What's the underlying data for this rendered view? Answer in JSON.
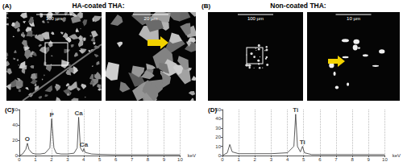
{
  "figure": {
    "panels": [
      {
        "label": "(A)",
        "title": "HA-coated THA:",
        "images": [
          {
            "scale_bar": "100 µm"
          },
          {
            "scale_bar": "20 µm"
          }
        ]
      },
      {
        "label": "(B)",
        "title": "Non-coated THA:",
        "images": [
          {
            "scale_bar": "100 µm"
          },
          {
            "scale_bar": "10 µm"
          }
        ]
      }
    ]
  },
  "chart_data": [
    {
      "type": "line",
      "title": "(C)",
      "x_label": "keV",
      "color": "#333333",
      "grid": true,
      "x": [
        0,
        0.2,
        0.4,
        0.5,
        0.6,
        0.8,
        1.0,
        1.3,
        1.6,
        1.9,
        2.01,
        2.15,
        2.3,
        2.6,
        3.0,
        3.4,
        3.6,
        3.69,
        3.8,
        3.95,
        4.01,
        4.1,
        4.5,
        5,
        6,
        7,
        8,
        9,
        10
      ],
      "values": [
        0,
        2,
        8,
        16,
        8,
        3,
        2,
        2,
        3,
        10,
        48,
        10,
        3,
        2,
        2,
        3,
        10,
        50,
        10,
        5,
        9,
        4,
        2,
        1.5,
        1,
        1,
        1,
        1,
        1
      ],
      "xlim": [
        0,
        10
      ],
      "xticks": [
        0,
        1,
        2,
        3,
        4,
        5,
        6,
        7,
        8,
        9,
        10
      ],
      "ylim": [
        0,
        60
      ],
      "yticks": [
        0,
        20,
        40,
        60
      ],
      "annotations": [
        {
          "text": "O",
          "x": 0.5,
          "y": 16
        },
        {
          "text": "P",
          "x": 2.01,
          "y": 48
        },
        {
          "text": "Ca",
          "x": 3.69,
          "y": 50
        },
        {
          "text": "Ca",
          "x": 4.01,
          "y": 9
        }
      ]
    },
    {
      "type": "line",
      "title": "(D)",
      "x_label": "keV",
      "color": "#333333",
      "grid": true,
      "x": [
        0,
        0.3,
        0.45,
        0.6,
        1,
        2,
        3,
        4,
        4.4,
        4.51,
        4.62,
        4.8,
        4.93,
        5.05,
        5.5,
        6,
        7,
        8,
        9,
        10
      ],
      "values": [
        0,
        3,
        12,
        4,
        2,
        2,
        2,
        3,
        10,
        45,
        10,
        4,
        10,
        3,
        1,
        1,
        1,
        1,
        1,
        1
      ],
      "xlim": [
        0,
        10
      ],
      "xticks": [
        0,
        1,
        2,
        3,
        4,
        5,
        6,
        7,
        8,
        9,
        10
      ],
      "ylim": [
        0,
        50
      ],
      "yticks": [
        0,
        10,
        20,
        30,
        40,
        50
      ],
      "annotations": [
        {
          "text": "Ti",
          "x": 4.51,
          "y": 45
        },
        {
          "text": "Ti",
          "x": 4.93,
          "y": 10
        }
      ]
    }
  ]
}
